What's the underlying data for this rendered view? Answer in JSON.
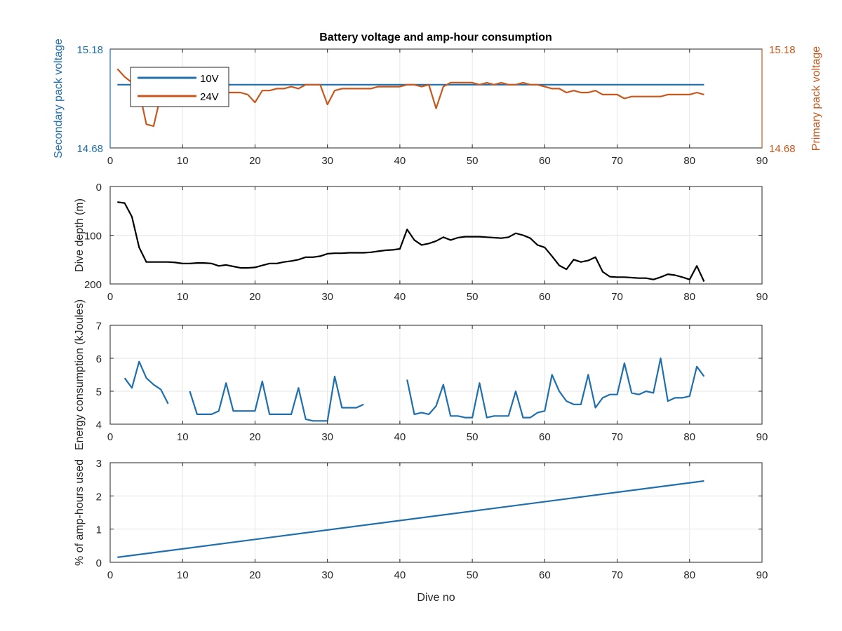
{
  "figure": {
    "title": "Battery voltage and amp-hour consumption"
  },
  "colors": {
    "blue": "#1f6fad",
    "orange": "#c8571c",
    "black": "#000000",
    "axis": "#262626",
    "grid": "#e6e6e6"
  },
  "chart_data": [
    {
      "type": "line",
      "title": "Battery voltage and amp-hour consumption",
      "xlabel": "",
      "ylabel": "Secondary pack voltage",
      "ylabel_right": "Primary pack voltage",
      "xlim": [
        0,
        90
      ],
      "ylim": [
        14.68,
        15.18
      ],
      "ylim_right": [
        14.68,
        15.18
      ],
      "xticks": [
        0,
        10,
        20,
        30,
        40,
        50,
        60,
        70,
        80,
        90
      ],
      "xtick_labels": [
        "0",
        "10",
        "20",
        "30",
        "40",
        "50",
        "60",
        "70",
        "80",
        "90"
      ],
      "ytick_labels": [
        "14.68",
        "15.18"
      ],
      "ytick_labels_right": [
        "14.68",
        "15.18"
      ],
      "grid": true,
      "legend": {
        "position": "top-left",
        "entries": [
          "10V",
          "24V"
        ]
      },
      "series": [
        {
          "name": "10V",
          "axis": "left",
          "color": "#1f6fad",
          "x": [
            1,
            82
          ],
          "y": [
            15.0,
            15.0
          ]
        },
        {
          "name": "24V",
          "axis": "right",
          "color": "#c8571c",
          "x": [
            1,
            2,
            3,
            4,
            5,
            6,
            7,
            8,
            9,
            10,
            11,
            12,
            13,
            14,
            15,
            16,
            17,
            18,
            19,
            20,
            21,
            22,
            23,
            24,
            25,
            26,
            27,
            28,
            29,
            30,
            31,
            32,
            33,
            34,
            35,
            36,
            37,
            38,
            39,
            40,
            41,
            42,
            43,
            44,
            45,
            46,
            47,
            48,
            49,
            50,
            51,
            52,
            53,
            54,
            55,
            56,
            57,
            58,
            59,
            60,
            61,
            62,
            63,
            64,
            65,
            66,
            67,
            68,
            69,
            70,
            71,
            72,
            73,
            74,
            75,
            76,
            77,
            78,
            79,
            80,
            81,
            82
          ],
          "y": [
            15.08,
            15.04,
            15.01,
            14.97,
            14.8,
            14.79,
            14.95,
            14.96,
            14.97,
            14.97,
            14.97,
            14.97,
            14.97,
            14.96,
            14.96,
            14.96,
            14.96,
            14.96,
            14.95,
            14.91,
            14.97,
            14.97,
            14.98,
            14.98,
            14.99,
            14.98,
            15.0,
            15.0,
            15.0,
            14.9,
            14.97,
            14.98,
            14.98,
            14.98,
            14.98,
            14.98,
            14.99,
            14.99,
            14.99,
            14.99,
            15.0,
            15.0,
            14.99,
            15.0,
            14.88,
            14.99,
            15.01,
            15.01,
            15.01,
            15.01,
            15.0,
            15.01,
            15.0,
            15.01,
            15.0,
            15.0,
            15.01,
            15.0,
            15.0,
            14.99,
            14.98,
            14.98,
            14.96,
            14.97,
            14.96,
            14.96,
            14.97,
            14.95,
            14.95,
            14.95,
            14.93,
            14.94,
            14.94,
            14.94,
            14.94,
            14.94,
            14.95,
            14.95,
            14.95,
            14.95,
            14.96,
            14.95
          ]
        }
      ]
    },
    {
      "type": "line",
      "xlabel": "",
      "ylabel": "Dive depth (m)",
      "xlim": [
        0,
        90
      ],
      "ylim": [
        0,
        200
      ],
      "y_reversed": true,
      "xticks": [
        0,
        10,
        20,
        30,
        40,
        50,
        60,
        70,
        80,
        90
      ],
      "xtick_labels": [
        "0",
        "10",
        "20",
        "30",
        "40",
        "50",
        "60",
        "70",
        "80",
        "90"
      ],
      "yticks": [
        0,
        100,
        200
      ],
      "ytick_labels": [
        "0",
        "100",
        "200"
      ],
      "grid": true,
      "series": [
        {
          "color": "#000000",
          "x": [
            1,
            2,
            3,
            4,
            5,
            6,
            7,
            8,
            9,
            10,
            11,
            12,
            13,
            14,
            15,
            16,
            17,
            18,
            19,
            20,
            21,
            22,
            23,
            24,
            25,
            26,
            27,
            28,
            29,
            30,
            31,
            32,
            33,
            34,
            35,
            36,
            37,
            38,
            39,
            40,
            41,
            42,
            43,
            44,
            45,
            46,
            47,
            48,
            49,
            50,
            51,
            52,
            53,
            54,
            55,
            56,
            57,
            58,
            59,
            60,
            61,
            62,
            63,
            64,
            65,
            66,
            67,
            68,
            69,
            70,
            71,
            72,
            73,
            74,
            75,
            76,
            77,
            78,
            79,
            80,
            81,
            82
          ],
          "y": [
            32,
            34,
            62,
            125,
            155,
            155,
            155,
            155,
            156,
            158,
            158,
            157,
            157,
            158,
            163,
            161,
            164,
            167,
            167,
            166,
            162,
            158,
            158,
            155,
            153,
            150,
            145,
            145,
            143,
            138,
            137,
            137,
            136,
            136,
            136,
            135,
            133,
            131,
            130,
            128,
            88,
            110,
            120,
            117,
            112,
            104,
            110,
            105,
            103,
            103,
            103,
            104,
            105,
            106,
            104,
            96,
            100,
            106,
            120,
            125,
            143,
            162,
            170,
            150,
            155,
            152,
            145,
            175,
            185,
            186,
            186,
            187,
            188,
            188,
            191,
            186,
            180,
            182,
            186,
            191,
            163,
            195
          ]
        }
      ]
    },
    {
      "type": "line",
      "xlabel": "",
      "ylabel": "Energy consumption (kJoules)",
      "xlim": [
        0,
        90
      ],
      "ylim": [
        4,
        7
      ],
      "xticks": [
        0,
        10,
        20,
        30,
        40,
        50,
        60,
        70,
        80,
        90
      ],
      "xtick_labels": [
        "0",
        "10",
        "20",
        "30",
        "40",
        "50",
        "60",
        "70",
        "80",
        "90"
      ],
      "yticks": [
        4,
        5,
        6,
        7
      ],
      "ytick_labels": [
        "4",
        "5",
        "6",
        "7"
      ],
      "grid": true,
      "series": [
        {
          "color": "#1f6fad",
          "x": [
            2,
            3,
            4,
            5,
            6,
            7,
            8,
            9,
            10,
            11,
            12,
            13,
            14,
            15,
            16,
            17,
            18,
            19,
            20,
            21,
            22,
            23,
            24,
            25,
            26,
            27,
            28,
            29,
            30,
            31,
            32,
            33,
            34,
            35,
            36,
            37,
            38,
            39,
            40,
            41,
            42,
            43,
            44,
            45,
            46,
            47,
            48,
            49,
            50,
            51,
            52,
            53,
            54,
            55,
            56,
            57,
            58,
            59,
            60,
            61,
            62,
            63,
            64,
            65,
            66,
            67,
            68,
            69,
            70,
            71,
            72,
            73,
            74,
            75,
            76,
            77,
            78,
            79,
            80,
            81,
            82
          ],
          "y": [
            5.4,
            5.1,
            5.9,
            5.4,
            5.2,
            5.05,
            4.62,
            null,
            null,
            5.0,
            4.3,
            4.3,
            4.3,
            4.4,
            5.25,
            4.4,
            4.4,
            4.4,
            4.4,
            5.3,
            4.3,
            4.3,
            4.3,
            4.3,
            5.1,
            4.15,
            4.1,
            4.1,
            4.1,
            5.45,
            4.5,
            4.5,
            4.5,
            4.6,
            null,
            null,
            null,
            null,
            null,
            5.35,
            4.3,
            4.35,
            4.3,
            4.55,
            5.2,
            4.25,
            4.25,
            4.2,
            4.2,
            5.25,
            4.2,
            4.25,
            4.25,
            4.25,
            5.0,
            4.2,
            4.2,
            4.35,
            4.4,
            5.5,
            5.0,
            4.7,
            4.6,
            4.6,
            5.5,
            4.5,
            4.8,
            4.9,
            4.9,
            5.85,
            4.95,
            4.9,
            5.0,
            4.95,
            6.0,
            4.7,
            4.8,
            4.8,
            4.85,
            5.75,
            5.45
          ]
        }
      ]
    },
    {
      "type": "line",
      "xlabel": "Dive no",
      "ylabel": "% of amp-hours used",
      "xlim": [
        0,
        90
      ],
      "ylim": [
        0,
        3
      ],
      "xticks": [
        0,
        10,
        20,
        30,
        40,
        50,
        60,
        70,
        80,
        90
      ],
      "xtick_labels": [
        "0",
        "10",
        "20",
        "30",
        "40",
        "50",
        "60",
        "70",
        "80",
        "90"
      ],
      "yticks": [
        0,
        1,
        2,
        3
      ],
      "ytick_labels": [
        "0",
        "1",
        "2",
        "3"
      ],
      "grid": true,
      "series": [
        {
          "color": "#1f6fad",
          "x": [
            1,
            82
          ],
          "y": [
            0.15,
            2.45
          ]
        }
      ]
    }
  ]
}
